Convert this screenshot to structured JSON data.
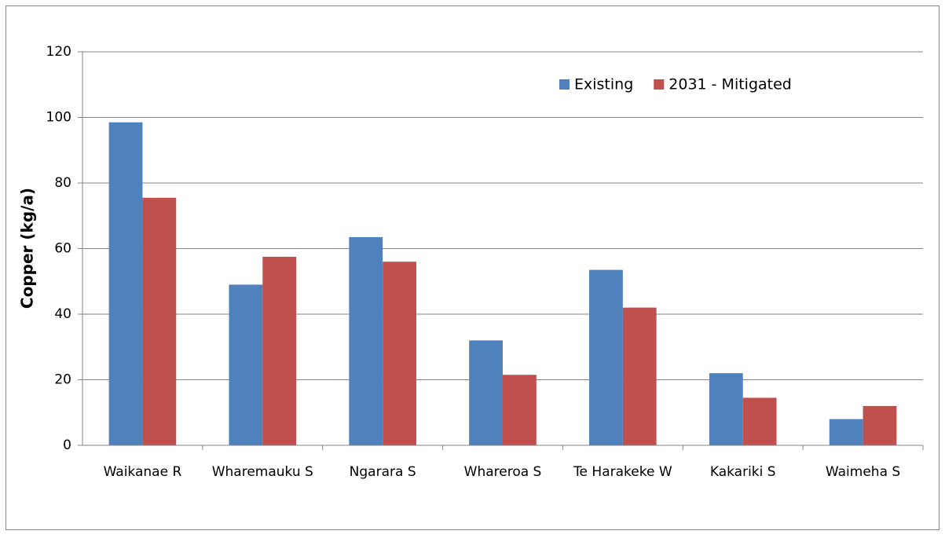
{
  "chart_data": {
    "type": "bar",
    "ylabel": "Copper (kg/a)",
    "categories": [
      "Waikanae R",
      "Wharemauku S",
      "Ngarara S",
      "Whareroa S",
      "Te Harakeke W",
      "Kakariki S",
      "Waimeha S"
    ],
    "series": [
      {
        "name": "Existing",
        "color": "#4f81bd",
        "values": [
          98.5,
          49,
          63.5,
          32,
          53.5,
          22,
          8
        ]
      },
      {
        "name": "2031 - Mitigated",
        "color": "#c0504d",
        "values": [
          75.5,
          57.5,
          56,
          21.5,
          42,
          14.5,
          12
        ]
      }
    ],
    "ylim": [
      0,
      120
    ],
    "yticks": [
      0,
      20,
      40,
      60,
      80,
      100,
      120
    ],
    "grid": true,
    "legend": "top-right"
  }
}
